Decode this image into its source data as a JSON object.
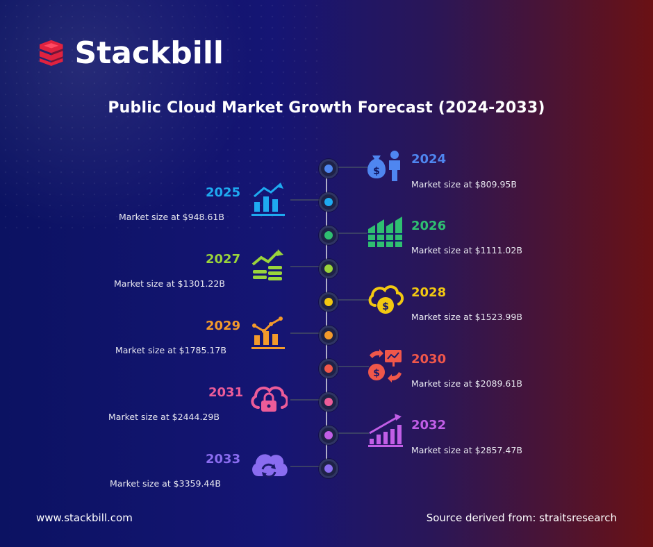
{
  "brand": {
    "name": "Stackbill",
    "color": "#e0223f"
  },
  "title": "Public Cloud Market Growth Forecast (2024-2033)",
  "timeline": [
    {
      "year": "2024",
      "text": "Market size at $809.95B",
      "color": "#4f86f0",
      "icon": "money-bag-person-icon"
    },
    {
      "year": "2025",
      "text": "Market size at $948.61B",
      "color": "#1eaaf1",
      "icon": "growth-bar-chart-icon"
    },
    {
      "year": "2026",
      "text": "Market size at $1111.02B",
      "color": "#2fbf71",
      "icon": "bar-chart-icon"
    },
    {
      "year": "2027",
      "text": "Market size at $1301.22B",
      "color": "#9ad43b",
      "icon": "growth-coins-icon"
    },
    {
      "year": "2028",
      "text": "Market size at $1523.99B",
      "color": "#f2c811",
      "icon": "cloud-dollar-icon"
    },
    {
      "year": "2029",
      "text": "Market size at $1785.17B",
      "color": "#f39a2b",
      "icon": "trend-bar-chart-icon"
    },
    {
      "year": "2030",
      "text": "Market size at $2089.61B",
      "color": "#f0574a",
      "icon": "dollar-exchange-icon"
    },
    {
      "year": "2031",
      "text": "Market size at $2444.29B",
      "color": "#ec5c99",
      "icon": "cloud-lock-icon"
    },
    {
      "year": "2032",
      "text": "Market size at $2857.47B",
      "color": "#c15ee6",
      "icon": "rising-bar-chart-icon"
    },
    {
      "year": "2033",
      "text": "Market size at $3359.44B",
      "color": "#8a6cf0",
      "icon": "cloud-sync-icon"
    }
  ],
  "footer": {
    "website": "www.stackbill.com",
    "source": "Source derived from: straitsresearch"
  }
}
